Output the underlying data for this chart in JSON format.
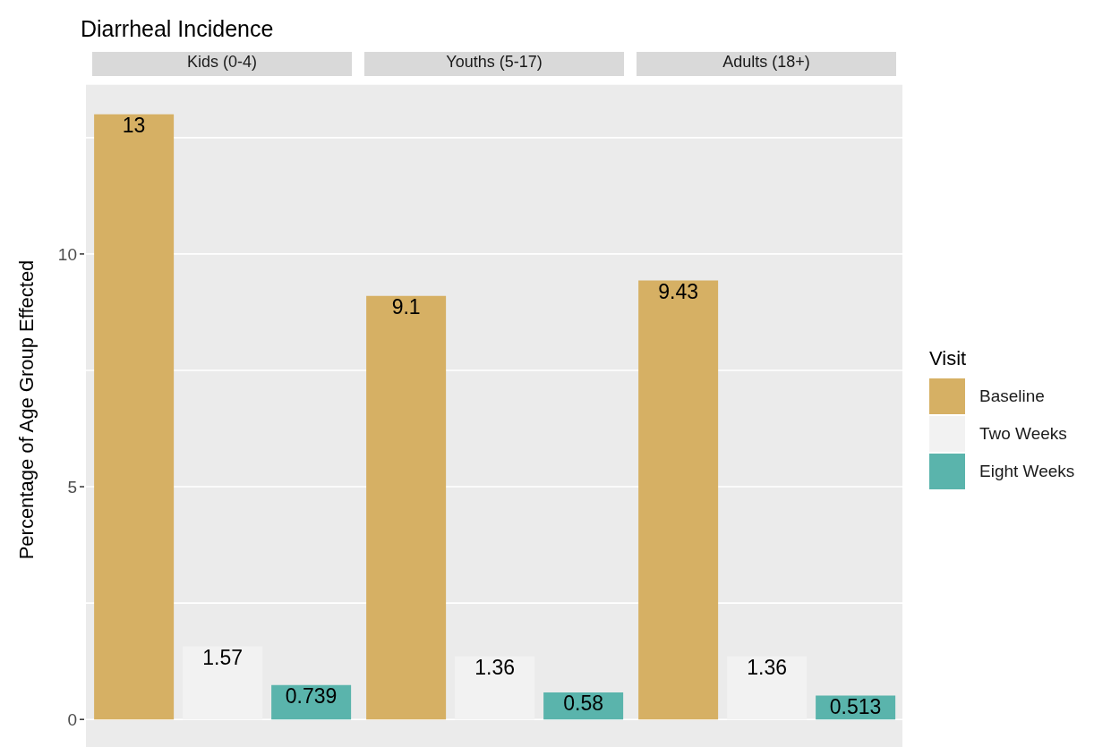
{
  "chart_data": {
    "type": "bar",
    "title": "Diarrheal Incidence",
    "ylabel": "Percentage of Age Group Effected",
    "legend_title": "Visit",
    "categories": [
      "Kids (0-4)",
      "Youths (5-17)",
      "Adults (18+)"
    ],
    "data_labels": true,
    "grid": "y",
    "legend": "right",
    "series": [
      {
        "name": "Baseline",
        "color": "#d6b064",
        "values": [
          13,
          9.1,
          9.43
        ]
      },
      {
        "name": "Two Weeks",
        "color": "#f2f2f2",
        "values": [
          1.57,
          1.36,
          1.36
        ]
      },
      {
        "name": "Eight Weeks",
        "color": "#5ab4ac",
        "values": [
          0.739,
          0.58,
          0.513
        ]
      }
    ],
    "ylim": [
      -0.65,
      13.65
    ],
    "yticks": [
      0,
      {
        "value": 2.5,
        "label": null
      },
      5,
      {
        "value": 7.5,
        "label": null
      },
      10,
      {
        "value": 12.5,
        "label": null
      }
    ]
  }
}
